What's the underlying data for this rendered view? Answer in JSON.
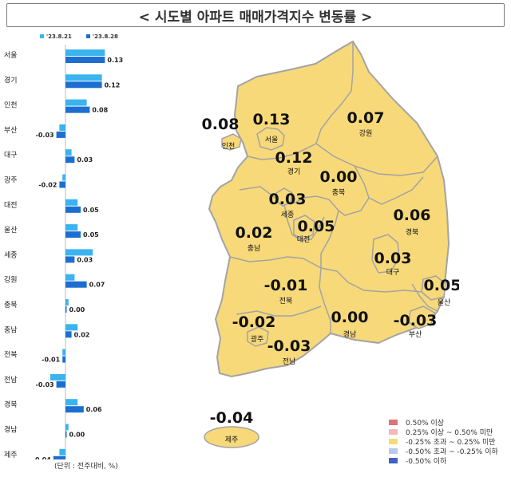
{
  "title": "< 시도별 아파트 매매가격지수 변동률 >",
  "unit_note": "(단위 : 전주대비, %)",
  "colors": {
    "prev_series": "#39b4ef",
    "curr_series": "#1c6fd0",
    "map_fill": "#f7d97a",
    "map_border": "#a3a3a3"
  },
  "chart_data": {
    "type": "bar",
    "orientation": "horizontal",
    "categories": [
      "서울",
      "경기",
      "인천",
      "부산",
      "대구",
      "광주",
      "대전",
      "울산",
      "세종",
      "강원",
      "충북",
      "충남",
      "전북",
      "전남",
      "경북",
      "경남",
      "제주"
    ],
    "series": [
      {
        "name": "'23.8.21",
        "values": [
          0.13,
          0.12,
          0.07,
          -0.02,
          0.02,
          -0.01,
          0.04,
          0.04,
          0.09,
          0.03,
          0.01,
          0.04,
          -0.01,
          -0.05,
          0.04,
          0.01,
          -0.02
        ]
      },
      {
        "name": "'23.8.28",
        "values": [
          0.13,
          0.12,
          0.08,
          -0.03,
          0.03,
          -0.02,
          0.05,
          0.05,
          0.03,
          0.07,
          0.0,
          0.02,
          -0.01,
          -0.03,
          0.06,
          0.0,
          -0.04
        ]
      }
    ],
    "data_labels": [
      "0.13",
      "0.12",
      "0.08",
      "-0.03",
      "0.03",
      "-0.02",
      "0.05",
      "0.05",
      "0.03",
      "0.07",
      "0.00",
      "0.02",
      "-0.01",
      "-0.03",
      "0.06",
      "0.00",
      "-0.04"
    ],
    "legend": "top"
  },
  "map": {
    "regions": [
      {
        "name": "인천",
        "value": "0.08"
      },
      {
        "name": "서울",
        "value": "0.13"
      },
      {
        "name": "경기",
        "value": "0.12"
      },
      {
        "name": "강원",
        "value": "0.07"
      },
      {
        "name": "충북",
        "value": "0.00"
      },
      {
        "name": "세종",
        "value": "0.03"
      },
      {
        "name": "대전",
        "value": "0.05"
      },
      {
        "name": "충남",
        "value": "0.02"
      },
      {
        "name": "경북",
        "value": "0.06"
      },
      {
        "name": "대구",
        "value": "0.03"
      },
      {
        "name": "울산",
        "value": "0.05"
      },
      {
        "name": "전북",
        "value": "-0.01"
      },
      {
        "name": "광주",
        "value": "-0.02"
      },
      {
        "name": "전남",
        "value": "-0.03"
      },
      {
        "name": "경남",
        "value": "0.00"
      },
      {
        "name": "부산",
        "value": "-0.03"
      },
      {
        "name": "제주",
        "value": "-0.04"
      }
    ]
  },
  "map_legend": [
    {
      "label": "0.50% 이상",
      "color": "#e0707a"
    },
    {
      "label": "0.25% 이상 ~ 0.50% 미만",
      "color": "#f3b8bd"
    },
    {
      "label": "-0.25% 초과 ~ 0.25% 미만",
      "color": "#f7d97a"
    },
    {
      "label": "-0.50% 초과 ~ -0.25% 이하",
      "color": "#b7c9ee"
    },
    {
      "label": "-0.50% 이하",
      "color": "#3e63c5"
    }
  ]
}
